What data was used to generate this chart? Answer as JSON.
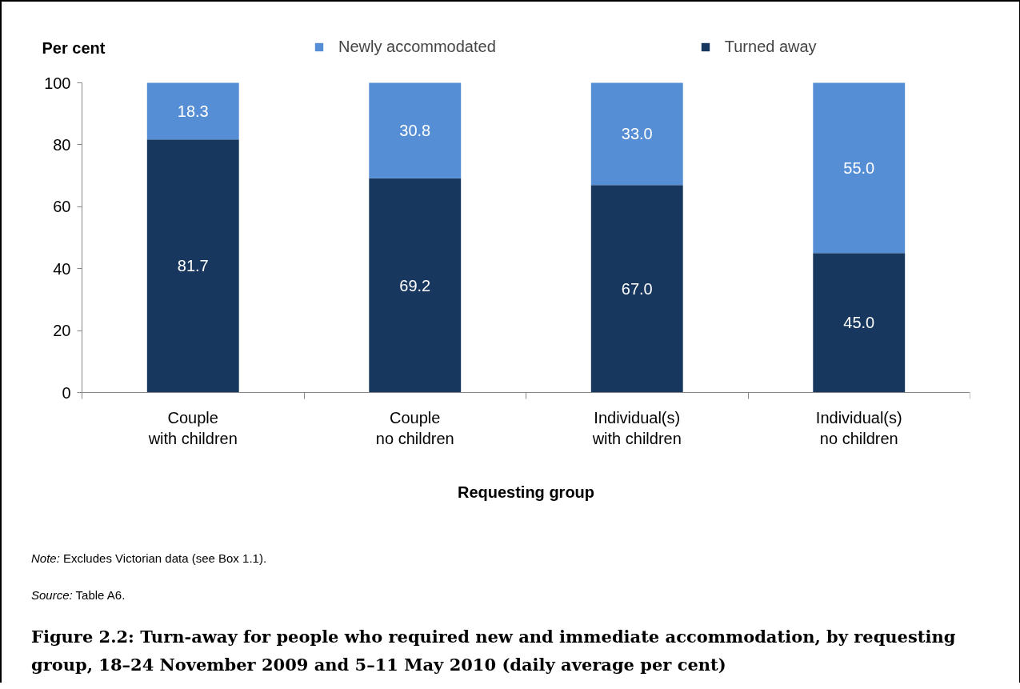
{
  "chart_data": {
    "type": "bar",
    "title": "Figure 2.2: Turn-away for people who required new and immediate accommodation, by requesting group, 18–24 November 2009 and 5–11 May 2010 (daily average per cent)",
    "xlabel": "Requesting group",
    "ylabel": "Per cent",
    "annotations": [
      "Note: Excludes Victorian data (see Box 1.1).",
      "Source: Table A6."
    ],
    "categories": [
      "Couple with children",
      "Couple no children",
      "Individual(s) with children",
      "Individual(s) no children"
    ],
    "series": [
      {
        "name": "Turned away",
        "color": "#17375e",
        "values": [
          81.7,
          69.2,
          67.0,
          45.0
        ],
        "value_labels": [
          "81.7",
          "69.2",
          "67.0",
          "45.0"
        ]
      },
      {
        "name": "Newly accommodated",
        "color": "#558ed5",
        "values": [
          18.3,
          30.8,
          33.0,
          55.0
        ],
        "value_labels": [
          "18.3",
          "30.8",
          "33.0",
          "55.0"
        ]
      }
    ],
    "stacked": true,
    "ylim": [
      0,
      100
    ],
    "yticks": [
      0,
      20,
      40,
      60,
      80,
      100
    ],
    "grid": false,
    "legend": "top"
  }
}
